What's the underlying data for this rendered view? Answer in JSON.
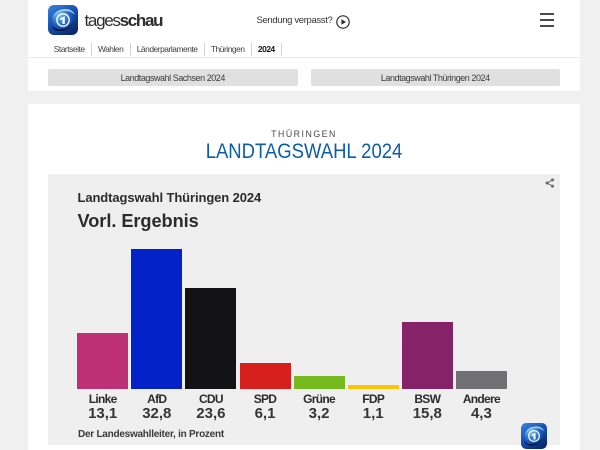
{
  "page": {
    "background": "#f0f0f0",
    "content_background": "#ffffff"
  },
  "header": {
    "brand": {
      "logo_icon": "tagesschau-globe",
      "word_regular": "tages",
      "word_bold": "schau"
    },
    "sendung_verpasst_label": "Sendung verpasst?",
    "nav_items": [
      {
        "label": "Startseite",
        "bold": false
      },
      {
        "label": "Wahlen",
        "bold": false
      },
      {
        "label": "Länderparlamente",
        "bold": false
      },
      {
        "label": "Thüringen",
        "bold": false
      },
      {
        "label": "2024",
        "bold": true
      }
    ],
    "buttons": [
      {
        "label": "Landtagswahl Sachsen 2024"
      },
      {
        "label": "Landtagswahl Thüringen 2024"
      }
    ]
  },
  "main": {
    "eyebrow": "THÜRINGEN",
    "title": "LANDTAGSWAHL 2024",
    "title_color": "#0b5da8"
  },
  "chart_data": {
    "type": "bar",
    "title": "Landtagswahl Thüringen 2024",
    "subtitle": "Vorl. Ergebnis",
    "categories": [
      "Linke",
      "AfD",
      "CDU",
      "SPD",
      "Grüne",
      "FDP",
      "BSW",
      "Andere"
    ],
    "values": [
      13.1,
      32.8,
      23.6,
      6.1,
      3.2,
      1.1,
      15.8,
      4.3
    ],
    "value_labels": [
      "13,1",
      "32,8",
      "23,6",
      "6,1",
      "3,2",
      "1,1",
      "15,8",
      "4,3"
    ],
    "colors": [
      "#be3075",
      "#0322c8",
      "#131315",
      "#d7201d",
      "#76ba20",
      "#fdc400",
      "#862267",
      "#717173"
    ],
    "ylabel": "",
    "xlabel": "",
    "unit": "Prozent",
    "source": "Der Landeswahlleiter, in Prozent",
    "grid": false,
    "legend": false,
    "ylim": [
      0,
      35
    ]
  }
}
